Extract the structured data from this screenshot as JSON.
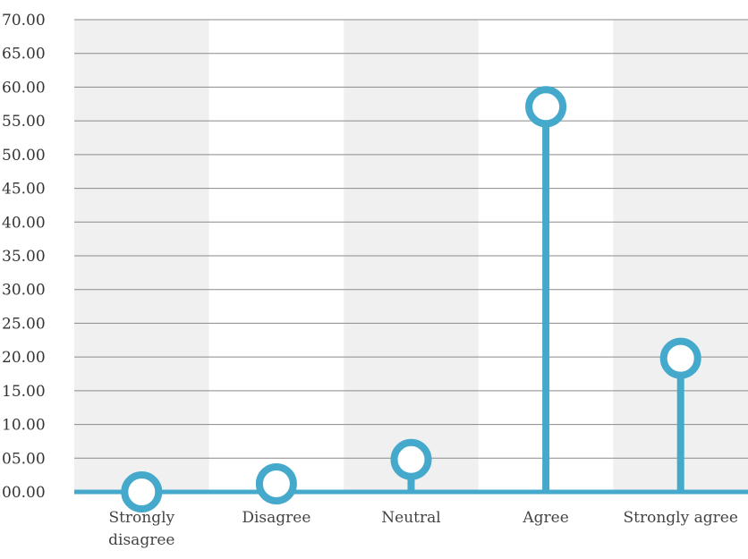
{
  "chart_data": {
    "type": "lollipop",
    "title": "",
    "xlabel": "",
    "ylabel": "",
    "categories": [
      "Strongly disagree",
      "Disagree",
      "Neutral",
      "Agree",
      "Strongly agree"
    ],
    "category_lines": [
      [
        "Strongly",
        "disagree"
      ],
      [
        "Disagree"
      ],
      [
        "Neutral"
      ],
      [
        "Agree"
      ],
      [
        "Strongly agree"
      ]
    ],
    "values": [
      0.0,
      1.2,
      4.8,
      57.1,
      19.8
    ],
    "yticks": [
      "00.00",
      "05.00",
      "10.00",
      "15.00",
      "20.00",
      "25.00",
      "30.00",
      "35.00",
      "40.00",
      "45.00",
      "50.00",
      "55.00",
      "60.00",
      "65.00",
      "70.00"
    ],
    "ylim": [
      0,
      70
    ],
    "grid": true,
    "colors": {
      "series": "#45a9cc",
      "band": "#f0f0f0",
      "gridline": "#8a8a8a"
    }
  }
}
